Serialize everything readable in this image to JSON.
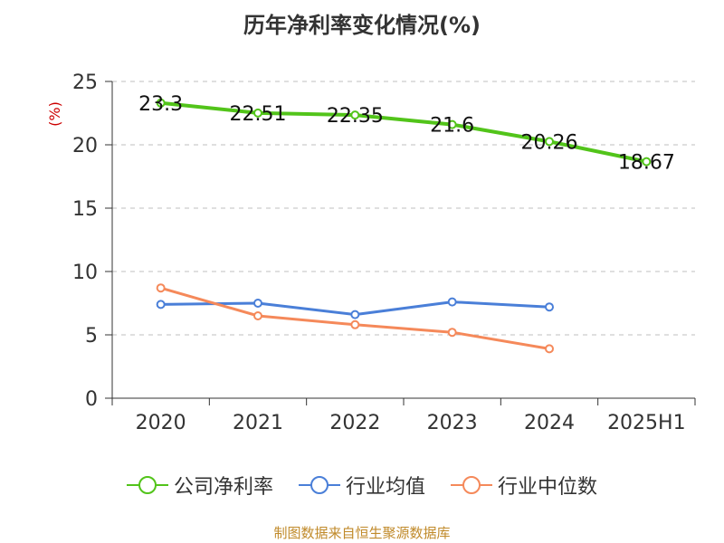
{
  "chart_data": {
    "type": "line",
    "title": "历年净利率变化情况(%)",
    "ylabel": "(%)",
    "xlabel": "",
    "categories": [
      "2020",
      "2021",
      "2022",
      "2023",
      "2024",
      "2025H1"
    ],
    "ylim": [
      0,
      25
    ],
    "yticks": [
      0,
      5,
      10,
      15,
      20,
      25
    ],
    "grid": "horizontal dashed",
    "legend_position": "bottom",
    "series": [
      {
        "name": "公司净利率",
        "color": "#52c41a",
        "values": [
          23.3,
          22.51,
          22.35,
          21.6,
          20.26,
          18.67
        ],
        "labels": [
          "23.3",
          "22.51",
          "22.35",
          "21.6",
          "20.26",
          "18.67"
        ]
      },
      {
        "name": "行业均值",
        "color": "#4a7fd8",
        "values": [
          7.4,
          7.5,
          6.6,
          7.6,
          7.2,
          null
        ]
      },
      {
        "name": "行业中位数",
        "color": "#f5895a",
        "values": [
          8.7,
          6.5,
          5.8,
          5.2,
          3.9,
          null
        ]
      }
    ]
  },
  "footer": "制图数据来自恒生聚源数据库"
}
